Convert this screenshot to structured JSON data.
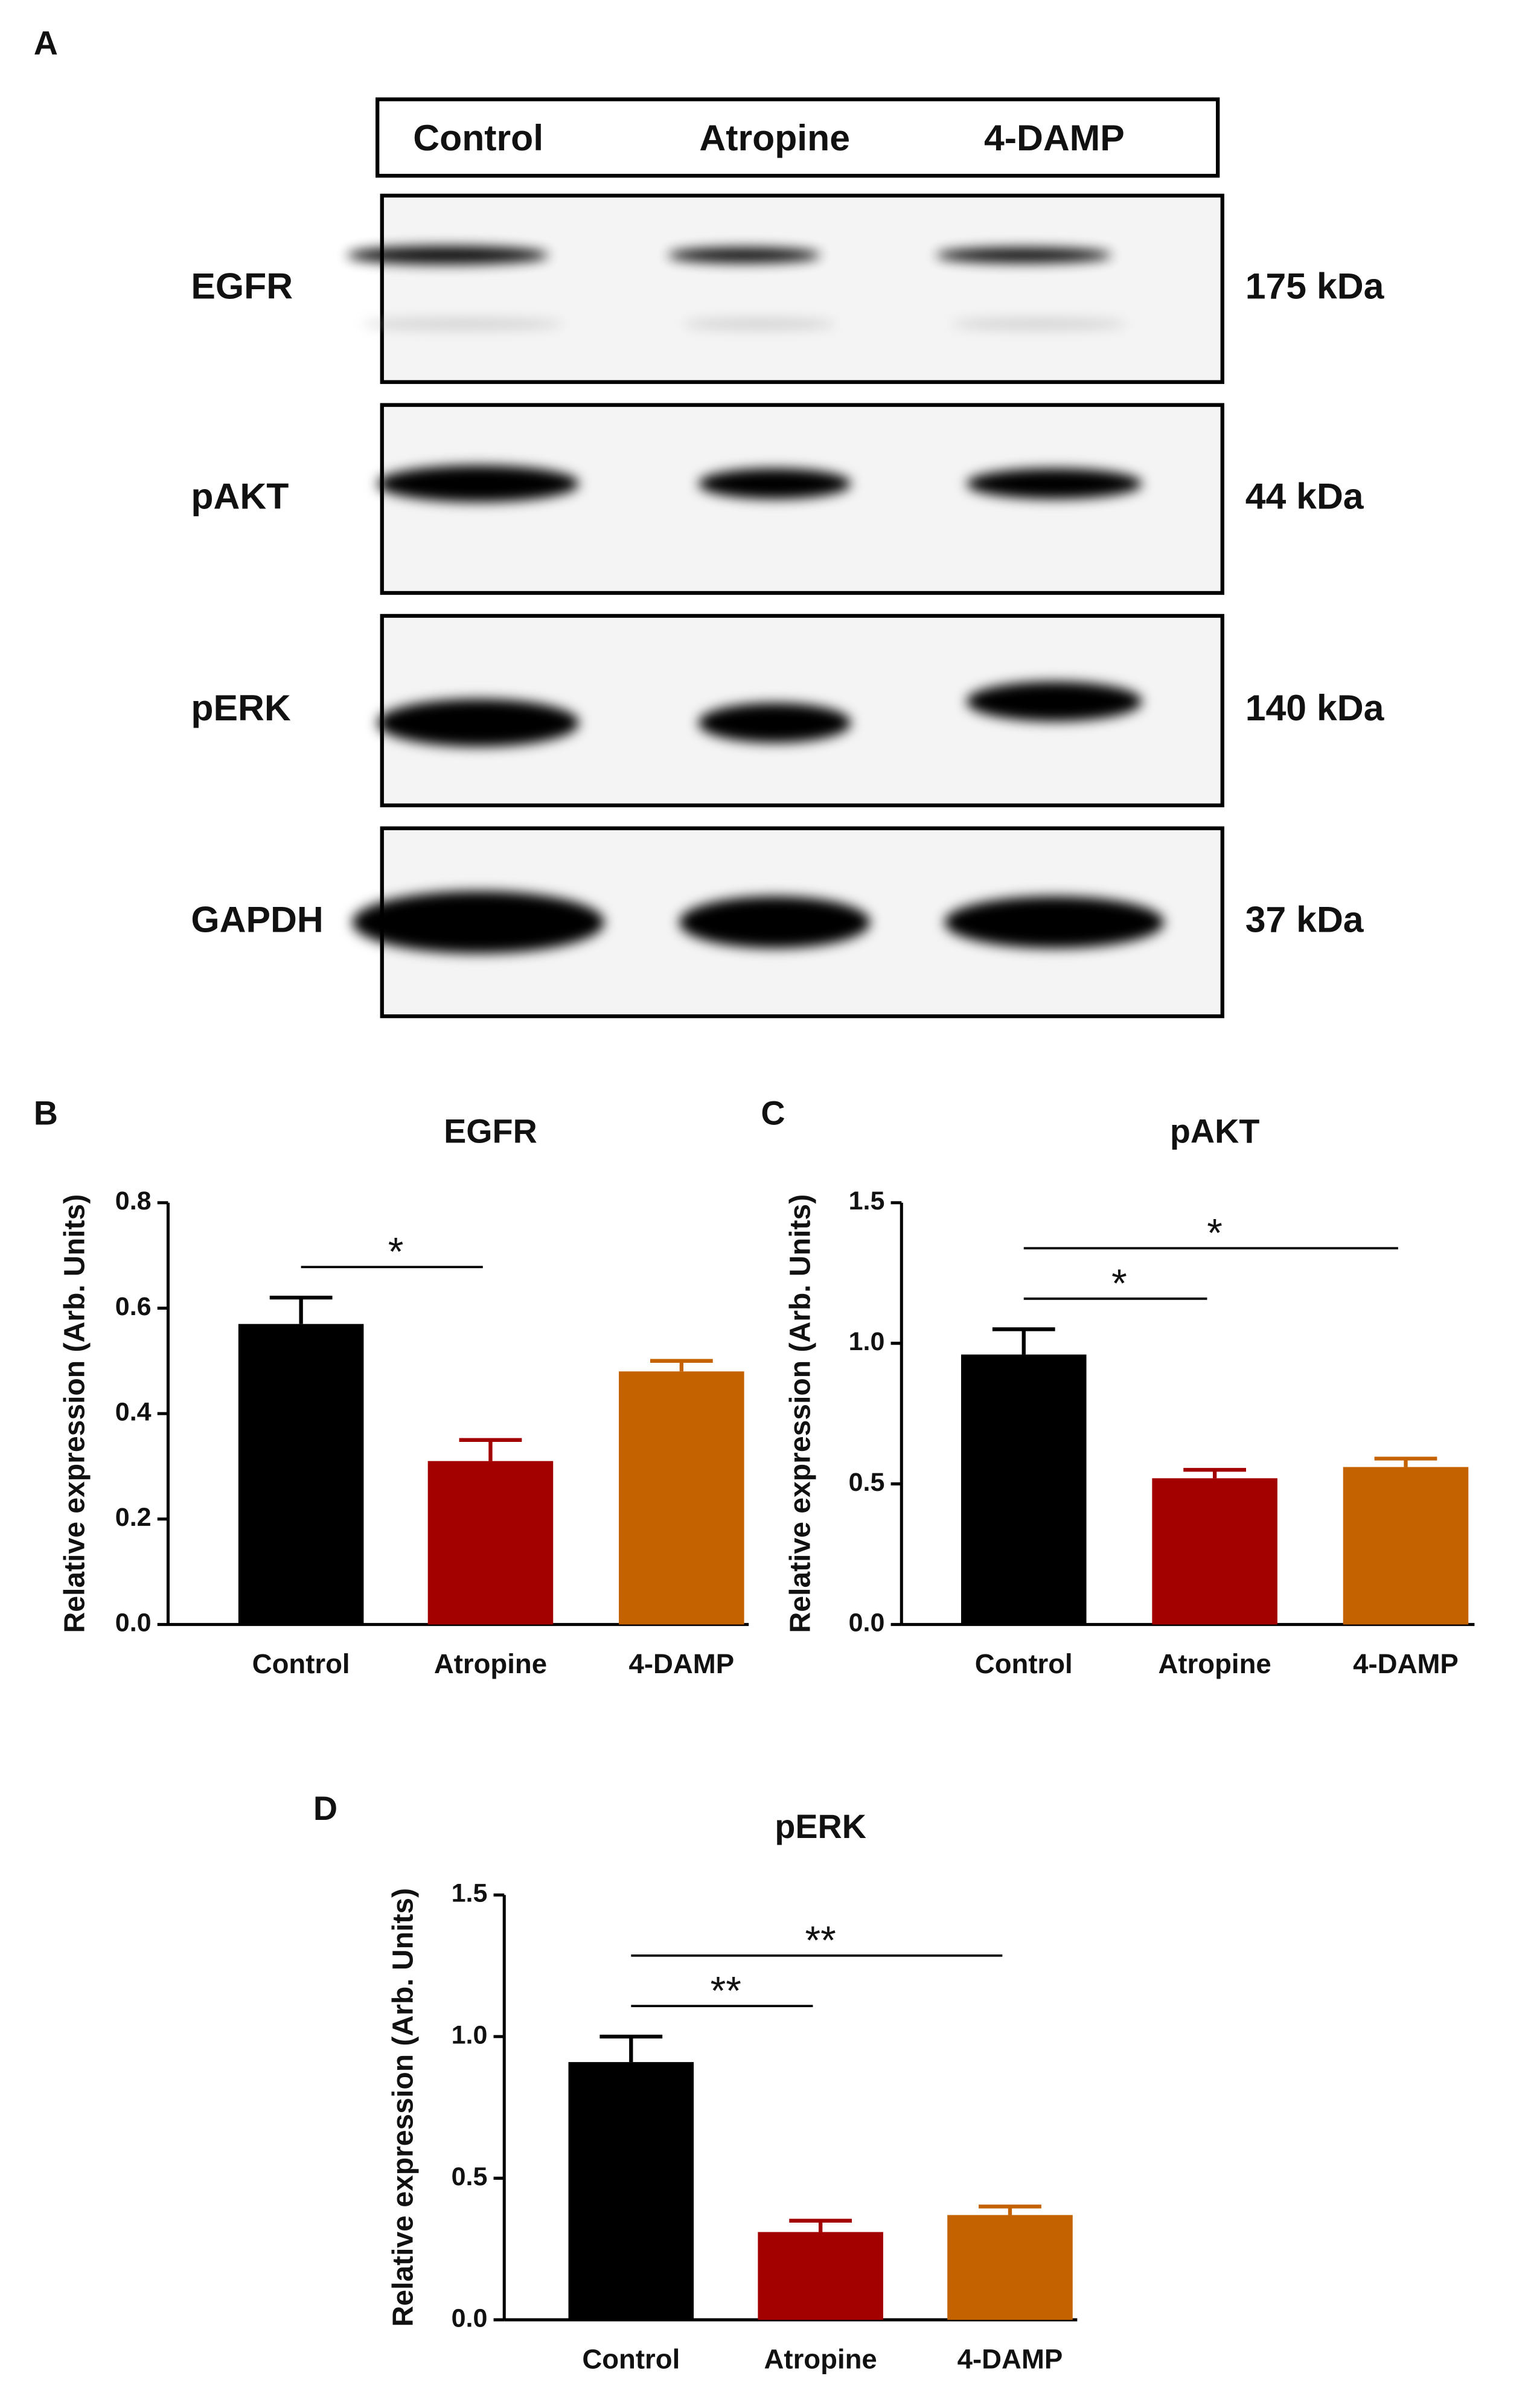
{
  "blot": {
    "panel_label": "A",
    "lanes": [
      "Control",
      "Atropine",
      "4-DAMP"
    ],
    "rows": [
      {
        "label": "EGFR",
        "size": "175 kDa"
      },
      {
        "label": "pAKT",
        "size": "44 kDa"
      },
      {
        "label": "pERK",
        "size": "140 kDa"
      },
      {
        "label": "GAPDH",
        "size": "37 kDa"
      }
    ]
  },
  "chart_data": [
    {
      "type": "bar",
      "panel_label": "B",
      "title": "EGFR",
      "ylabel": "Relative expression (Arb. Units)",
      "categories": [
        "Control",
        "Atropine",
        "4-DAMP"
      ],
      "values": [
        0.57,
        0.31,
        0.48
      ],
      "errors": [
        0.05,
        0.04,
        0.02
      ],
      "colors": [
        "#000000",
        "#a30000",
        "#c46200"
      ],
      "ylim": [
        0,
        0.8
      ],
      "yticks": [
        {
          "value": 0,
          "label": "0.0"
        },
        0.2,
        0.4,
        0.6,
        0.8
      ],
      "significance": [
        {
          "between": [
            0,
            1
          ],
          "label": "*"
        }
      ]
    },
    {
      "type": "bar",
      "panel_label": "C",
      "title": "pAKT",
      "ylabel": "Relative expression (Arb. Units)",
      "categories": [
        "Control",
        "Atropine",
        "4-DAMP"
      ],
      "values": [
        0.96,
        0.52,
        0.56
      ],
      "errors": [
        0.09,
        0.03,
        0.03
      ],
      "colors": [
        "#000000",
        "#a30000",
        "#c46200"
      ],
      "ylim": [
        0,
        1.5
      ],
      "yticks": [
        {
          "value": 0,
          "label": "0.0"
        },
        0.5,
        {
          "value": 1,
          "label": "1.0"
        },
        1.5
      ],
      "significance": [
        {
          "between": [
            0,
            1
          ],
          "label": "*"
        },
        {
          "between": [
            0,
            2
          ],
          "label": "*"
        }
      ]
    },
    {
      "type": "bar",
      "panel_label": "D",
      "title": "pERK",
      "ylabel": "Relative expression (Arb. Units)",
      "categories": [
        "Control",
        "Atropine",
        "4-DAMP"
      ],
      "values": [
        0.91,
        0.31,
        0.37
      ],
      "errors": [
        0.09,
        0.04,
        0.03
      ],
      "colors": [
        "#000000",
        "#a30000",
        "#c46200"
      ],
      "ylim": [
        0,
        1.5
      ],
      "yticks": [
        {
          "value": 0,
          "label": "0.0"
        },
        0.5,
        {
          "value": 1,
          "label": "1.0"
        },
        1.5
      ],
      "significance": [
        {
          "between": [
            0,
            1
          ],
          "label": "**"
        },
        {
          "between": [
            0,
            2
          ],
          "label": "**"
        }
      ]
    }
  ]
}
